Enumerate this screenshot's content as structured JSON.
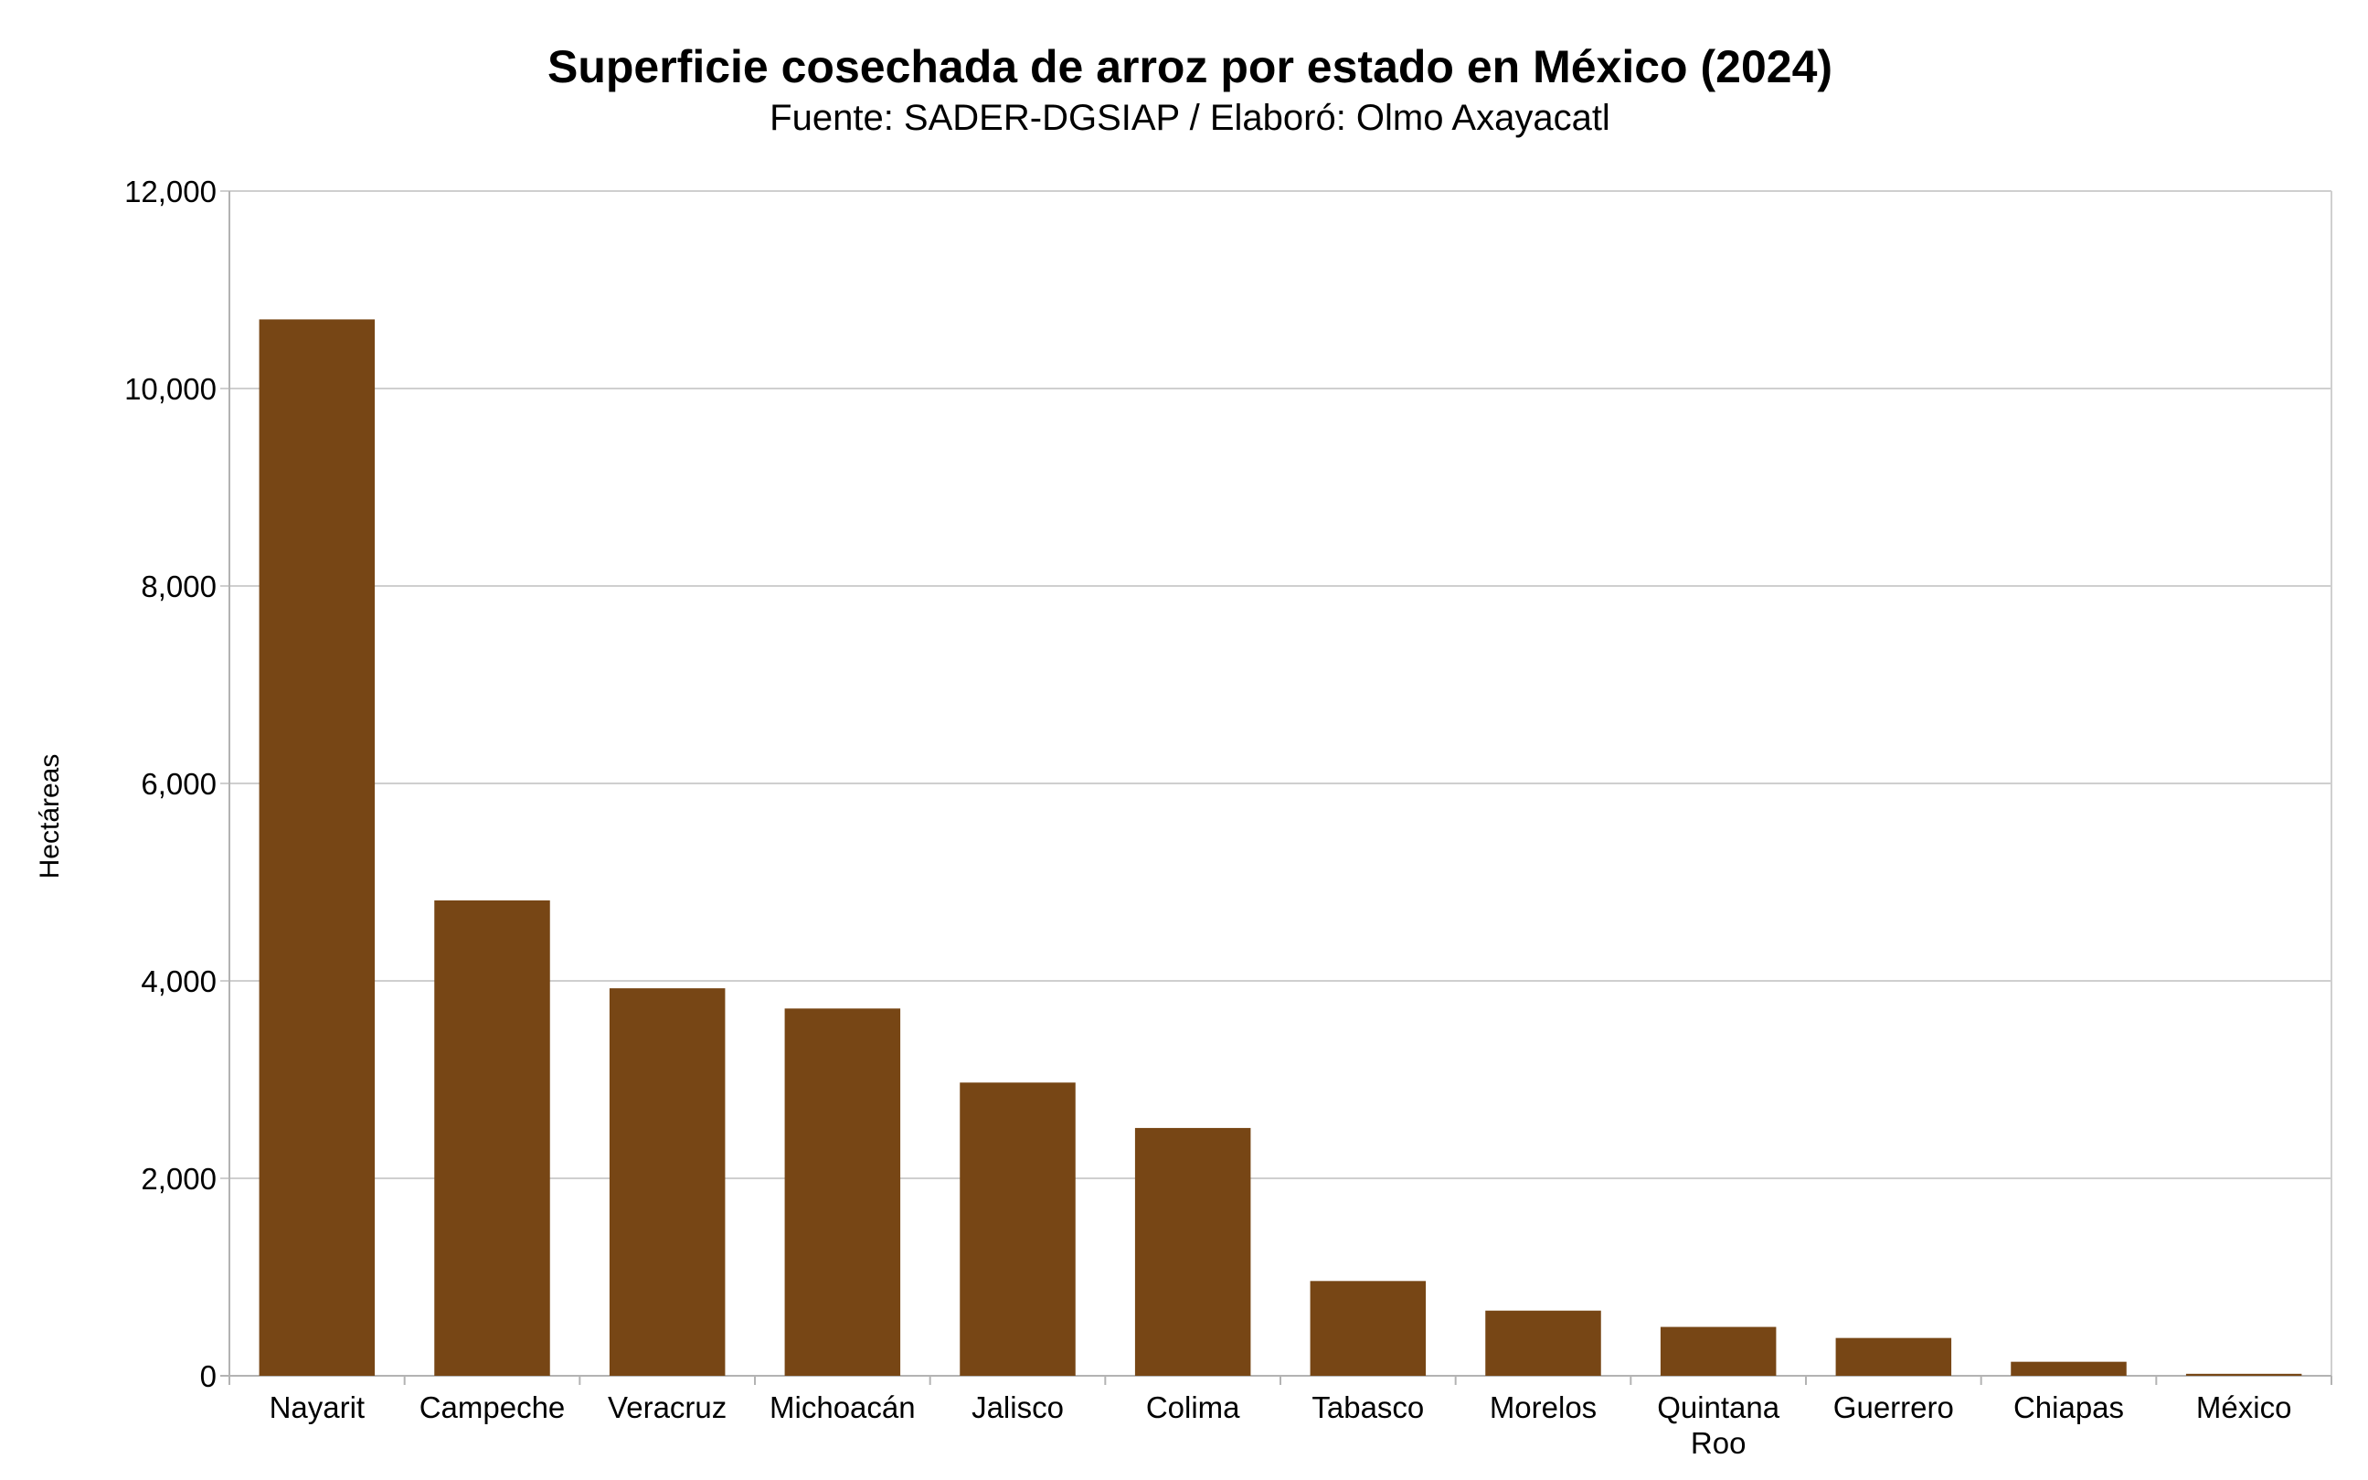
{
  "chart_data": {
    "type": "bar",
    "title": "Superficie cosechada de arroz por estado en México (2024)",
    "subtitle": "Fuente: SADER-DGSIAP / Elaboró: Olmo Axayacatl",
    "xlabel": "",
    "ylabel": "Hectáreas",
    "ylim": [
      0,
      12000
    ],
    "yticks": [
      "0",
      "2,000",
      "4,000",
      "6,000",
      "8,000",
      "10,000",
      "12,000"
    ],
    "ytick_values": [
      0,
      2000,
      4000,
      6000,
      8000,
      10000,
      12000
    ],
    "grid": true,
    "legend": "none",
    "bar_color": "#774615",
    "categories": [
      "Nayarit",
      "Campeche",
      "Veracruz",
      "Michoacán",
      "Jalisco",
      "Colima",
      "Tabasco",
      "Morelos",
      "Quintana Roo",
      "Guerrero",
      "Chiapas",
      "México"
    ],
    "values": [
      10700,
      4815,
      3925,
      3720,
      2970,
      2510,
      960,
      660,
      495,
      383,
      142,
      20
    ]
  }
}
